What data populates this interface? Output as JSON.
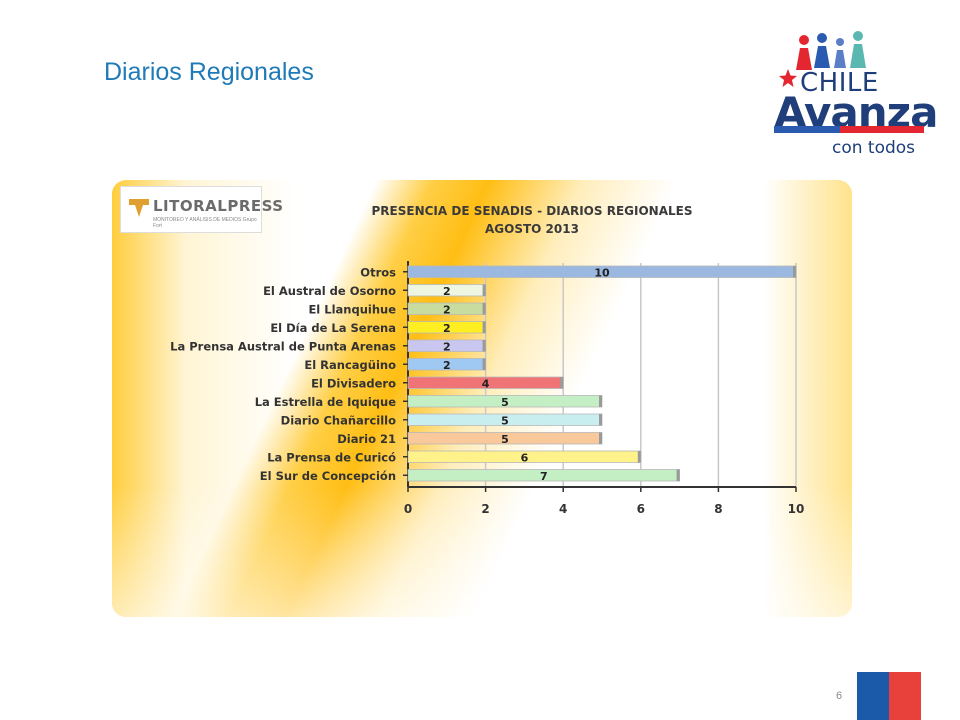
{
  "slide": {
    "title": "Diarios Regionales",
    "page_number": "6"
  },
  "logo": {
    "line1": "CHILE",
    "line2": "Avanza",
    "tagline": "con todos",
    "colors": {
      "navy": "#1f3e7a",
      "blue": "#2a5bb0",
      "red": "#e3262f"
    }
  },
  "press_logo": {
    "name": "LITORALPRESS",
    "subtitle": "MONITOREO Y ANÁLISIS DE MEDIOS Grupo Fort"
  },
  "chart_data": {
    "type": "bar",
    "orientation": "horizontal",
    "title": "PRESENCIA DE SENADIS - DIARIOS REGIONALES",
    "subtitle": "AGOSTO 2013",
    "categories": [
      "Otros",
      "El Austral de Osorno",
      "El Llanquihue",
      "El Día de La Serena",
      "La Prensa Austral de Punta Arenas",
      "El Rancagüino",
      "El Divisadero",
      "La Estrella de Iquique",
      "Diario Chañarcillo",
      "Diario 21",
      "La Prensa de Curicó",
      "El Sur de Concepción"
    ],
    "values": [
      10,
      2,
      2,
      2,
      2,
      2,
      4,
      5,
      5,
      5,
      6,
      7
    ],
    "bar_colors": [
      "#9ab8e0",
      "#eef5e0",
      "#c7dc9e",
      "#ffee22",
      "#c9c6f0",
      "#9fc8f2",
      "#f07476",
      "#c4efc4",
      "#c9eef0",
      "#f9c89b",
      "#fff28a",
      "#c4efc4"
    ],
    "xlim": [
      0,
      10
    ],
    "x_ticks": [
      "0",
      "2",
      "4",
      "6",
      "8",
      "10"
    ],
    "grid": true,
    "data_labels": true
  }
}
